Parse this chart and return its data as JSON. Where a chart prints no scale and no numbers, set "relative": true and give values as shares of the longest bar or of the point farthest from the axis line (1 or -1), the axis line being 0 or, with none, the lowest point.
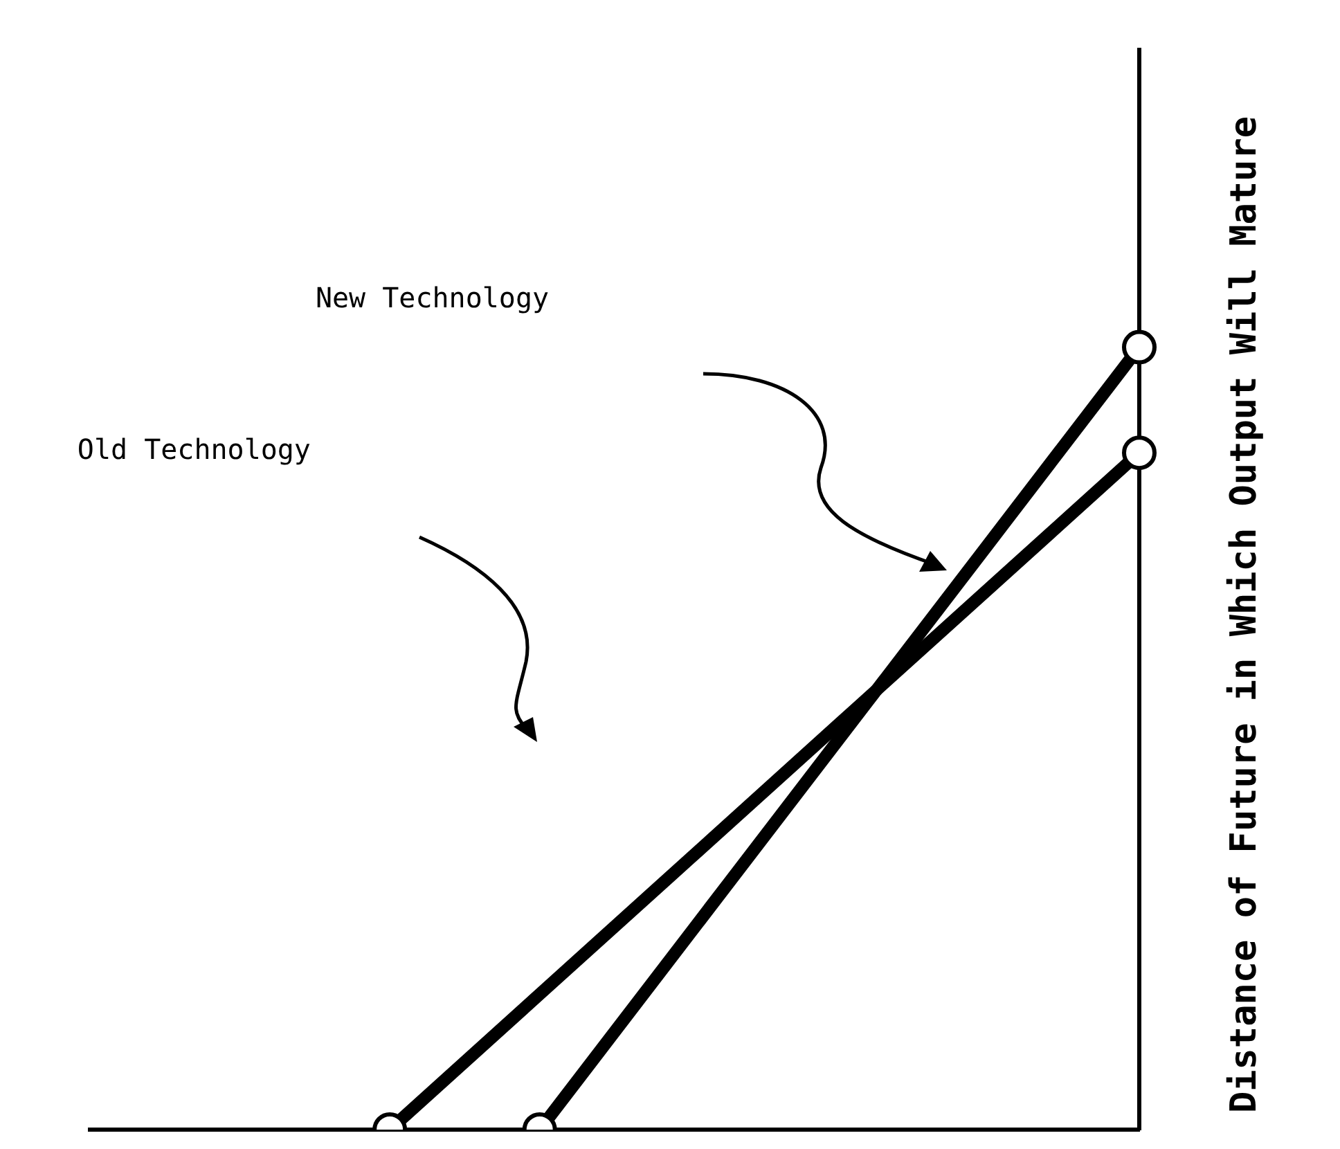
{
  "chart_data": {
    "type": "line",
    "relative": true,
    "ylabel": "Distance of Future in Which Output Will Mature",
    "annotations": [
      "New Technology",
      "Old Technology"
    ],
    "categories": [
      null,
      null,
      null,
      null,
      null,
      null,
      null,
      null
    ],
    "series": [
      {
        "color": "#000000",
        "values": [
          null,
          null,
          0,
          0.173,
          0.346,
          0.519,
          0.692,
          0.865
        ]
      },
      {
        "color": "#000000",
        "values": [
          null,
          null,
          null,
          0,
          0.25,
          0.5,
          0.75,
          1
        ]
      }
    ],
    "line_style": "solid",
    "legend": false,
    "grid": false,
    "tick_labels": false
  }
}
